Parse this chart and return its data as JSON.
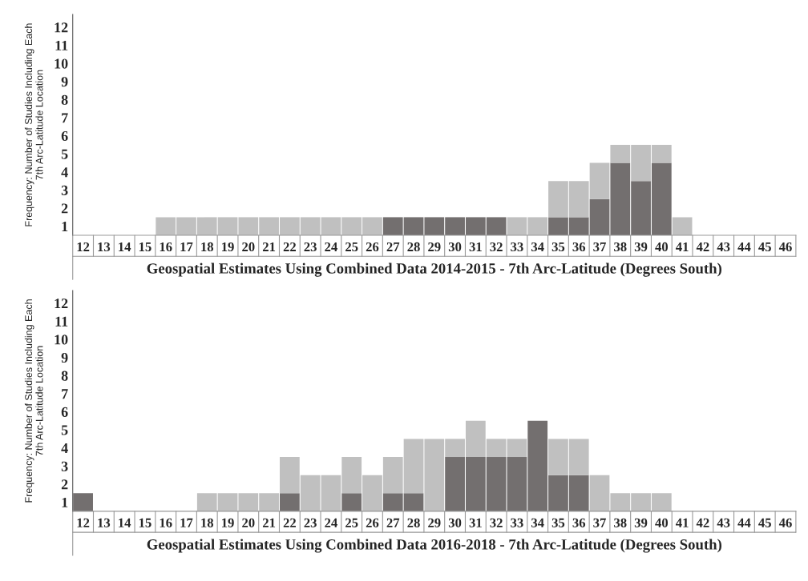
{
  "chart_data": [
    {
      "type": "bar",
      "stacked": true,
      "xlabel": "Geospatial Estimates Using Combined Data 2014-2015 - 7th Arc-Latitude (Degrees South)",
      "ylabel": "Frequency: Number of Studies Including Each\n7th Arc-Latitude Location",
      "categories": [
        "12",
        "13",
        "14",
        "15",
        "16",
        "17",
        "18",
        "19",
        "20",
        "21",
        "22",
        "23",
        "24",
        "25",
        "26",
        "27",
        "28",
        "29",
        "30",
        "31",
        "32",
        "33",
        "34",
        "35",
        "36",
        "37",
        "38",
        "39",
        "40",
        "41",
        "42",
        "43",
        "44",
        "45",
        "46"
      ],
      "series": [
        {
          "color": "#736f6f",
          "values": [
            0,
            0,
            0,
            0,
            0,
            0,
            0,
            0,
            0,
            0,
            0,
            0,
            0,
            0,
            0,
            1,
            1,
            1,
            1,
            1,
            1,
            0,
            0,
            1,
            1,
            2,
            4,
            3,
            4,
            0,
            0,
            0,
            0,
            0,
            0
          ]
        },
        {
          "color": "#c0c0c0",
          "values": [
            0,
            0,
            0,
            0,
            1,
            1,
            1,
            1,
            1,
            1,
            1,
            1,
            1,
            1,
            1,
            0,
            0,
            0,
            0,
            0,
            0,
            1,
            1,
            2,
            2,
            2,
            1,
            2,
            1,
            1,
            0,
            0,
            0,
            0,
            0
          ]
        }
      ],
      "ylim": [
        0,
        12.2
      ],
      "yticks": [
        {
          "value": 0.5,
          "label": "1"
        },
        {
          "value": 1.5,
          "label": "2"
        },
        {
          "value": 2.5,
          "label": "3"
        },
        {
          "value": 3.5,
          "label": "4"
        },
        {
          "value": 4.5,
          "label": "5"
        },
        {
          "value": 5.5,
          "label": "6"
        },
        {
          "value": 6.5,
          "label": "7"
        },
        {
          "value": 7.5,
          "label": "8"
        },
        {
          "value": 8.5,
          "label": "9"
        },
        {
          "value": 9.5,
          "label": "10"
        },
        {
          "value": 10.5,
          "label": "11"
        },
        {
          "value": 11.5,
          "label": "12"
        }
      ],
      "grid": false,
      "legend": false
    },
    {
      "type": "bar",
      "stacked": true,
      "xlabel": "Geospatial Estimates Using Combined Data 2016-2018 - 7th Arc-Latitude (Degrees South)",
      "ylabel": "Frequency: Number of Studies Including Each\n7th Arc-Latitude Location",
      "categories": [
        "12",
        "13",
        "14",
        "15",
        "16",
        "17",
        "18",
        "19",
        "20",
        "21",
        "22",
        "23",
        "24",
        "25",
        "26",
        "27",
        "28",
        "29",
        "30",
        "31",
        "32",
        "33",
        "34",
        "35",
        "36",
        "37",
        "38",
        "39",
        "40",
        "41",
        "42",
        "43",
        "44",
        "45",
        "46"
      ],
      "series": [
        {
          "color": "#736f6f",
          "values": [
            1,
            0,
            0,
            0,
            0,
            0,
            0,
            0,
            0,
            0,
            1,
            0,
            0,
            1,
            0,
            1,
            1,
            0,
            3,
            3,
            3,
            3,
            5,
            2,
            2,
            0,
            0,
            0,
            0,
            0,
            0,
            0,
            0,
            0,
            0
          ]
        },
        {
          "color": "#c0c0c0",
          "values": [
            0,
            0,
            0,
            0,
            0,
            0,
            1,
            1,
            1,
            1,
            2,
            2,
            2,
            2,
            2,
            2,
            3,
            4,
            1,
            2,
            1,
            1,
            0,
            2,
            2,
            2,
            1,
            1,
            1,
            0,
            0,
            0,
            0,
            0,
            0
          ]
        }
      ],
      "ylim": [
        0,
        12.2
      ],
      "yticks": [
        {
          "value": 0.5,
          "label": "1"
        },
        {
          "value": 1.5,
          "label": "2"
        },
        {
          "value": 2.5,
          "label": "3"
        },
        {
          "value": 3.5,
          "label": "4"
        },
        {
          "value": 4.5,
          "label": "5"
        },
        {
          "value": 5.5,
          "label": "6"
        },
        {
          "value": 6.5,
          "label": "7"
        },
        {
          "value": 7.5,
          "label": "8"
        },
        {
          "value": 8.5,
          "label": "9"
        },
        {
          "value": 9.5,
          "label": "10"
        },
        {
          "value": 10.5,
          "label": "11"
        },
        {
          "value": 11.5,
          "label": "12"
        }
      ],
      "grid": false,
      "legend": false
    }
  ]
}
